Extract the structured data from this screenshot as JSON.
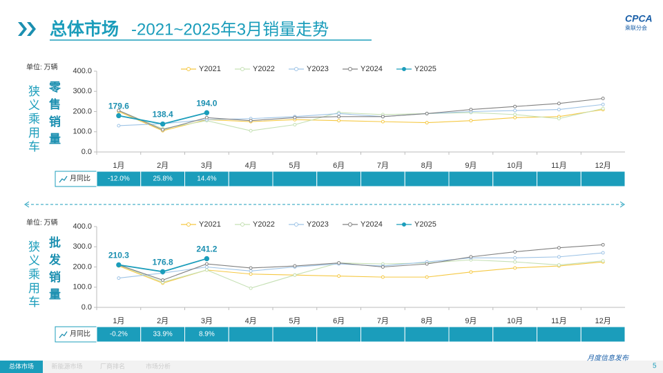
{
  "header": {
    "title_bold": "总体市场",
    "title_rest": "-2021~2025年3月销量走势",
    "logo": "CPCA",
    "logo_sub": "乘联分会"
  },
  "footer": {
    "tabs": [
      "总体市场",
      "新能源市场",
      "厂商排名",
      "市场分析"
    ],
    "note": "月度信息发布",
    "page": "5"
  },
  "chart_data": [
    {
      "type": "line",
      "unit": "单位: 万辆",
      "group": "狭义乘用车",
      "subject": "零售销量",
      "categories": [
        "1月",
        "2月",
        "3月",
        "4月",
        "5月",
        "6月",
        "7月",
        "8月",
        "9月",
        "10月",
        "11月",
        "12月"
      ],
      "ylim": [
        0,
        400
      ],
      "yticks": [
        {
          "value": 0,
          "label": "0.0"
        },
        {
          "value": 100,
          "label": "100.0"
        },
        {
          "value": 200,
          "label": "200.0"
        },
        {
          "value": 300,
          "label": "300.0"
        },
        {
          "value": 400,
          "label": "400.0"
        }
      ],
      "series": [
        {
          "name": "Y2021",
          "color": "#f5c842",
          "values": [
            200,
            105,
            160,
            150,
            160,
            155,
            150,
            145,
            155,
            170,
            175,
            210
          ]
        },
        {
          "name": "Y2022",
          "color": "#c5e0b4",
          "values": [
            205,
            115,
            155,
            105,
            135,
            195,
            185,
            190,
            195,
            185,
            165,
            215
          ]
        },
        {
          "name": "Y2023",
          "color": "#9dc3e6",
          "values": [
            130,
            140,
            160,
            165,
            175,
            190,
            175,
            190,
            200,
            205,
            210,
            235
          ]
        },
        {
          "name": "Y2024",
          "color": "#808080",
          "values": [
            205,
            110,
            170,
            155,
            170,
            175,
            175,
            190,
            210,
            225,
            240,
            265
          ]
        },
        {
          "name": "Y2025",
          "color": "#1b9dbb",
          "values": [
            179.6,
            138.4,
            194.0,
            null,
            null,
            null,
            null,
            null,
            null,
            null,
            null,
            null
          ],
          "value_labels": [
            "179.6",
            "138.4",
            "194.0",
            null,
            null,
            null,
            null,
            null,
            null,
            null,
            null,
            null
          ]
        }
      ],
      "yoy": {
        "label": "月同比",
        "values": [
          "-12.0%",
          "25.8%",
          "14.4%"
        ]
      }
    },
    {
      "type": "line",
      "unit": "单位: 万辆",
      "group": "狭义乘用车",
      "subject": "批发销量",
      "categories": [
        "1月",
        "2月",
        "3月",
        "4月",
        "5月",
        "6月",
        "7月",
        "8月",
        "9月",
        "10月",
        "11月",
        "12月"
      ],
      "ylim": [
        0,
        400
      ],
      "yticks": [
        {
          "value": 0,
          "label": "0.0"
        },
        {
          "value": 100,
          "label": "100.0"
        },
        {
          "value": 200,
          "label": "200.0"
        },
        {
          "value": 300,
          "label": "300.0"
        },
        {
          "value": 400,
          "label": "400.0"
        }
      ],
      "series": [
        {
          "name": "Y2021",
          "color": "#f5c842",
          "values": [
            205,
            120,
            185,
            165,
            160,
            155,
            150,
            150,
            175,
            195,
            205,
            225
          ]
        },
        {
          "name": "Y2022",
          "color": "#c5e0b4",
          "values": [
            210,
            125,
            185,
            95,
            160,
            220,
            215,
            220,
            235,
            225,
            210,
            230
          ]
        },
        {
          "name": "Y2023",
          "color": "#9dc3e6",
          "values": [
            145,
            170,
            200,
            180,
            200,
            215,
            205,
            225,
            245,
            245,
            250,
            270
          ]
        },
        {
          "name": "Y2024",
          "color": "#808080",
          "values": [
            210,
            135,
            215,
            195,
            205,
            220,
            200,
            215,
            250,
            275,
            295,
            310
          ]
        },
        {
          "name": "Y2025",
          "color": "#1b9dbb",
          "values": [
            210.3,
            176.8,
            241.2,
            null,
            null,
            null,
            null,
            null,
            null,
            null,
            null,
            null
          ],
          "value_labels": [
            "210.3",
            "176.8",
            "241.2",
            null,
            null,
            null,
            null,
            null,
            null,
            null,
            null,
            null
          ]
        }
      ],
      "yoy": {
        "label": "月同比",
        "values": [
          "-0.2%",
          "33.9%",
          "8.9%"
        ]
      }
    }
  ]
}
